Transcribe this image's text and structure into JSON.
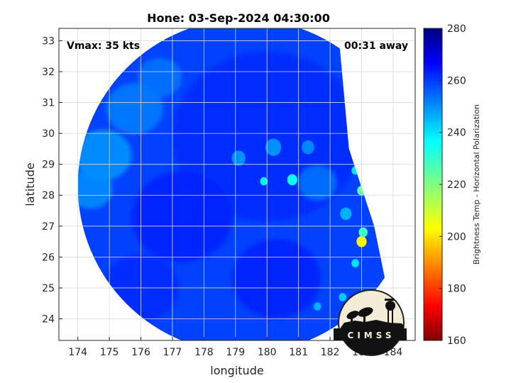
{
  "chart_data": {
    "type": "heatmap",
    "title": "Hone: 03-Sep-2024 04:30:00",
    "xlabel": "longitude",
    "ylabel": "latitude",
    "xlim": [
      173.4,
      184.7
    ],
    "ylim": [
      23.3,
      33.4
    ],
    "xticks": [
      174,
      175,
      176,
      177,
      178,
      179,
      180,
      181,
      182,
      183,
      184
    ],
    "yticks": [
      24,
      25,
      26,
      27,
      28,
      29,
      30,
      31,
      32,
      33
    ],
    "grid": true,
    "annotations": {
      "vmax": "Vmax: 35 kts",
      "time_offset": "00:31 away"
    },
    "colorbar": {
      "label": "Brightness Temp - Horizontal Polarization",
      "range": [
        160,
        280
      ],
      "ticks": [
        160,
        180,
        200,
        220,
        240,
        260,
        280
      ],
      "colormap": "jet"
    },
    "swath": {
      "center": [
        179.3,
        28.3
      ],
      "radius_deg": 5.3,
      "right_edge_polygon": [
        [
          182.2,
          34.0
        ],
        [
          182.6,
          29.5
        ],
        [
          183.4,
          27.0
        ],
        [
          183.8,
          25.0
        ],
        [
          182.0,
          22.5
        ],
        [
          186.0,
          22.5
        ],
        [
          186.0,
          34.0
        ]
      ]
    },
    "field": {
      "background_temp": 259,
      "warm_features": [
        {
          "lon": 180.0,
          "lat": 29.9,
          "r": 3.0,
          "temp": 262
        },
        {
          "lon": 177.3,
          "lat": 27.3,
          "r": 1.6,
          "temp": 263
        },
        {
          "lon": 180.3,
          "lat": 25.3,
          "r": 1.4,
          "temp": 263
        },
        {
          "lon": 176.0,
          "lat": 25.0,
          "r": 1.2,
          "temp": 262
        }
      ],
      "cool_features": [
        {
          "lon": 174.8,
          "lat": 29.3,
          "r": 0.9,
          "temp": 249
        },
        {
          "lon": 174.4,
          "lat": 28.2,
          "r": 0.7,
          "temp": 250
        },
        {
          "lon": 175.8,
          "lat": 30.8,
          "r": 0.9,
          "temp": 252
        },
        {
          "lon": 176.6,
          "lat": 31.8,
          "r": 0.7,
          "temp": 253
        },
        {
          "lon": 181.6,
          "lat": 28.4,
          "r": 0.6,
          "temp": 253
        }
      ],
      "cold_spots": [
        {
          "lon": 180.8,
          "lat": 28.5,
          "r": 0.16,
          "temp": 235
        },
        {
          "lon": 179.9,
          "lat": 28.45,
          "r": 0.12,
          "temp": 238
        },
        {
          "lon": 182.8,
          "lat": 28.8,
          "r": 0.12,
          "temp": 240
        },
        {
          "lon": 183.0,
          "lat": 28.15,
          "r": 0.14,
          "temp": 224
        },
        {
          "lon": 183.0,
          "lat": 26.5,
          "r": 0.16,
          "temp": 202
        },
        {
          "lon": 183.05,
          "lat": 26.8,
          "r": 0.14,
          "temp": 228
        },
        {
          "lon": 182.8,
          "lat": 25.8,
          "r": 0.12,
          "temp": 240
        },
        {
          "lon": 182.4,
          "lat": 24.7,
          "r": 0.12,
          "temp": 243
        },
        {
          "lon": 181.6,
          "lat": 24.4,
          "r": 0.12,
          "temp": 246
        },
        {
          "lon": 179.1,
          "lat": 29.2,
          "r": 0.22,
          "temp": 250
        },
        {
          "lon": 180.2,
          "lat": 29.55,
          "r": 0.25,
          "temp": 250
        },
        {
          "lon": 181.3,
          "lat": 29.55,
          "r": 0.2,
          "temp": 251
        },
        {
          "lon": 182.5,
          "lat": 27.4,
          "r": 0.18,
          "temp": 246
        }
      ]
    }
  },
  "logo": {
    "text": "CIMSS"
  }
}
